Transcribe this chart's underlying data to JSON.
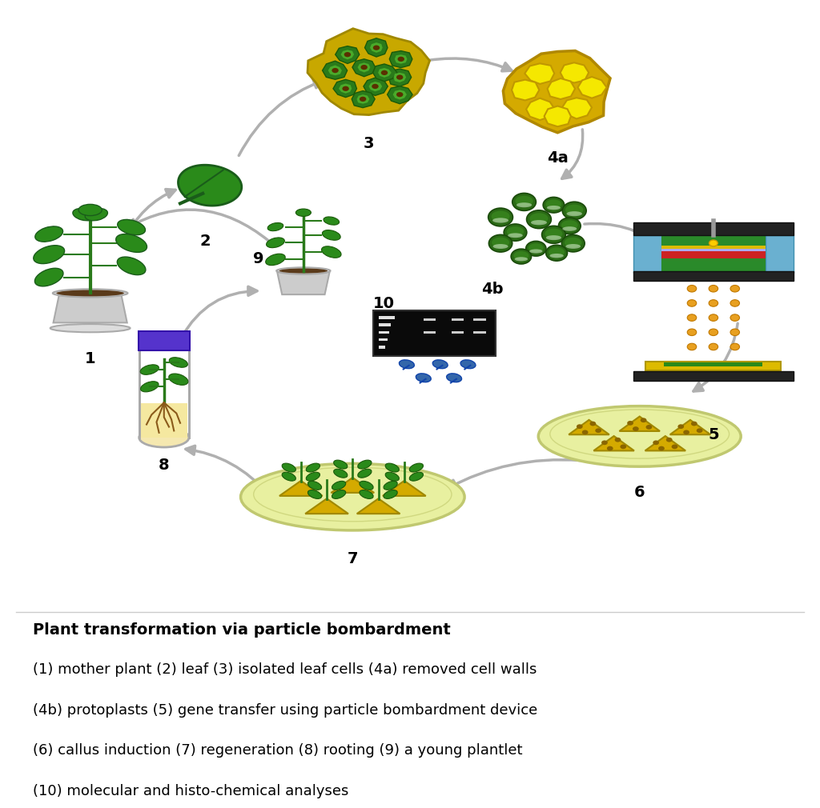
{
  "title": "Plant transformation via particle bombardment",
  "description_lines": [
    "(1) mother plant (2) leaf (3) isolated leaf cells (4a) removed cell walls",
    "(4b) protoplasts (5) gene transfer using particle bombardment device",
    "(6) callus induction (7) regeneration (8) rooting (9) a young plantlet",
    "(10) molecular and histo-chemical analyses"
  ],
  "background_color": "#ffffff",
  "arrow_color": "#b0b0b0",
  "label_color": "#000000",
  "label_fontsize": 14,
  "title_fontsize": 14,
  "desc_fontsize": 13
}
